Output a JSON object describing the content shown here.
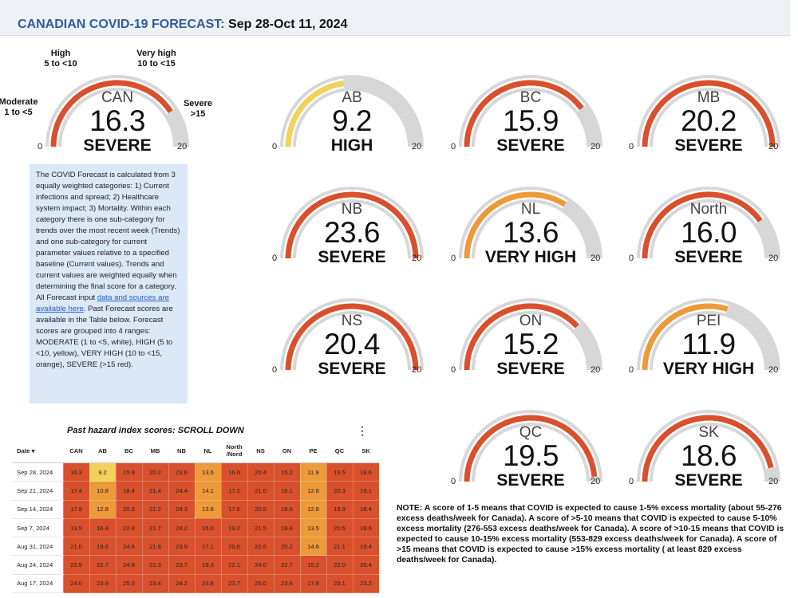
{
  "header": {
    "title": "CANADIAN COVID-19 FORECAST:",
    "date_range": "Sep 28-Oct 11, 2024"
  },
  "colors": {
    "severe": "#d9502c",
    "very_high": "#ed9a3a",
    "high": "#f3d15c",
    "track": "#d7d7d7",
    "header_blue": "#2f5a9e"
  },
  "scale_labels": {
    "moderate": [
      "Moderate",
      "1 to <5"
    ],
    "high": [
      "High",
      "5 to <10"
    ],
    "very_high": [
      "Very high",
      "10 to <15"
    ],
    "severe": [
      "Severe",
      ">15"
    ]
  },
  "chart_data": {
    "type": "gauge",
    "title": "CANADIAN COVID-19 FORECAST: Sep 28-Oct 11, 2024",
    "range": [
      0,
      20
    ],
    "axis_min_label": "0",
    "axis_max_label": "20",
    "series": [
      {
        "region": "CAN",
        "value": 16.3,
        "value_label": "16.3",
        "level": "SEVERE",
        "color": "#d9502c"
      },
      {
        "region": "AB",
        "value": 9.2,
        "value_label": "9.2",
        "level": "HIGH",
        "color": "#f3d15c"
      },
      {
        "region": "BC",
        "value": 15.9,
        "value_label": "15.9",
        "level": "SEVERE",
        "color": "#d9502c"
      },
      {
        "region": "MB",
        "value": 20.2,
        "value_label": "20.2",
        "level": "SEVERE",
        "color": "#d9502c"
      },
      {
        "region": "NB",
        "value": 23.6,
        "value_label": "23.6",
        "level": "SEVERE",
        "color": "#d9502c"
      },
      {
        "region": "NL",
        "value": 13.6,
        "value_label": "13.6",
        "level": "VERY HIGH",
        "color": "#ed9a3a"
      },
      {
        "region": "North",
        "value": 16.0,
        "value_label": "16.0",
        "level": "SEVERE",
        "color": "#d9502c"
      },
      {
        "region": "NS",
        "value": 20.4,
        "value_label": "20.4",
        "level": "SEVERE",
        "color": "#d9502c"
      },
      {
        "region": "ON",
        "value": 15.2,
        "value_label": "15.2",
        "level": "SEVERE",
        "color": "#d9502c"
      },
      {
        "region": "PEI",
        "value": 11.9,
        "value_label": "11.9",
        "level": "VERY HIGH",
        "color": "#ed9a3a"
      },
      {
        "region": "QC",
        "value": 19.5,
        "value_label": "19.5",
        "level": "SEVERE",
        "color": "#d9502c"
      },
      {
        "region": "SK",
        "value": 18.6,
        "value_label": "18.6",
        "level": "SEVERE",
        "color": "#d9502c"
      }
    ]
  },
  "info_box": {
    "text_before_link": "The COVID Forecast is calculated from 3 equally weighted categories: 1) Current infections and spread; 2) Healthcare system impact; 3) Mortality. Within each category there is one sub-category for trends over the most recent week (Trends) and one sub-category for current parameter values relative to a specified baseline (Current values). Trends and current values are weighted equally when determining the final score for a category. All Forecast input ",
    "link_text": "data and sources are available here",
    "text_after_link": ". Past Forecast scores are available in the Table below. Forecast scores are grouped into 4 ranges: MODERATE (1 to <5, white), HIGH (5 to <10, yellow), VERY HIGH (10 to <15, orange), SEVERE (>15 red)."
  },
  "table": {
    "title": "Past hazard index scores: SCROLL DOWN",
    "menu_icon": "⋮",
    "date_header": "Date ▾",
    "columns": [
      "CAN",
      "AB",
      "BC",
      "MB",
      "NB",
      "NL",
      "North /Nord",
      "NS",
      "ON",
      "PE",
      "QC",
      "SK"
    ],
    "rows": [
      {
        "date": "Sep 28, 2024",
        "values": [
          "16.3",
          "9.2",
          "15.9",
          "20.2",
          "23.6",
          "13.6",
          "16.0",
          "20.4",
          "15.2",
          "11.9",
          "19.5",
          "18.6"
        ]
      },
      {
        "date": "Sep 21, 2024",
        "values": [
          "17.4",
          "10.8",
          "18.4",
          "21.4",
          "24.4",
          "14.1",
          "17.2",
          "21.0",
          "16.1",
          "12.6",
          "20.3",
          "19.1"
        ]
      },
      {
        "date": "Sep 14, 2024",
        "values": [
          "17.9",
          "12.8",
          "20.3",
          "21.2",
          "24.3",
          "13.8",
          "17.6",
          "20.5",
          "16.6",
          "12.8",
          "19.9",
          "18.4"
        ]
      },
      {
        "date": "Sep 7, 2024",
        "values": [
          "19.5",
          "16.4",
          "22.4",
          "21.7",
          "24.2",
          "15.0",
          "19.2",
          "21.5",
          "18.4",
          "13.5",
          "20.5",
          "18.6"
        ]
      },
      {
        "date": "Aug 31, 2024",
        "values": [
          "21.0",
          "19.6",
          "24.6",
          "21.8",
          "23.9",
          "17.1",
          "20.6",
          "22.6",
          "20.2",
          "14.6",
          "21.1",
          "19.4"
        ]
      },
      {
        "date": "Aug 24, 2024",
        "values": [
          "22.9",
          "22.7",
          "24.8",
          "22.3",
          "23.7",
          "19.3",
          "22.1",
          "24.0",
          "22.7",
          "15.2",
          "22.0",
          "20.4"
        ]
      },
      {
        "date": "Aug 17, 2024",
        "values": [
          "24.0",
          "23.9",
          "25.0",
          "23.4",
          "24.2",
          "23.6",
          "23.7",
          "25.0",
          "23.6",
          "17.8",
          "23.1",
          "23.2"
        ]
      }
    ]
  },
  "note": "NOTE: A score of 1-5 means that COVID is expected to cause 1-5% excess mortality (about 55-276 excess deaths/week for Canada). A score of >5-10 means that COVID is expected to cause 5-10% excess mortality (276-553 excess deaths/week for Canada). A score of >10-15 means that COVID is expected to cause 10-15% excess mortality (553-829 excess deaths/week for Canada). A score of >15 means that COVID is expected to cause >15% excess mortality ( at least 829 excess deaths/week for Canada)."
}
